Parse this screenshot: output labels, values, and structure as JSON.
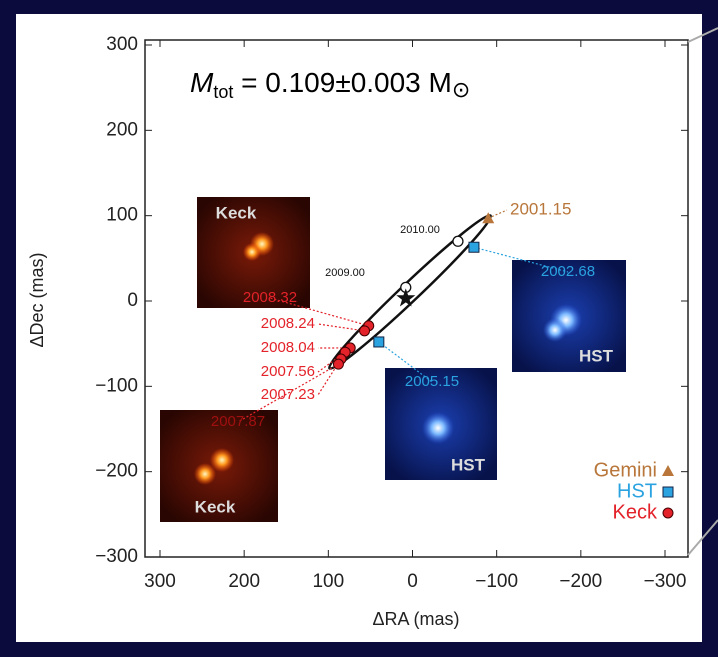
{
  "chart_data": {
    "type": "scatter",
    "annotation": {
      "symbol": "M",
      "subscript": "tot",
      "text": " = 0.109±0.003 M",
      "sun": "⊙"
    },
    "x_label": "ΔRA (mas)",
    "y_label": "ΔDec (mas)",
    "xlim": [
      300,
      -300
    ],
    "ylim": [
      -300,
      300
    ],
    "xticks": [
      300,
      200,
      100,
      0,
      {
        "value": -100,
        "label": "−100"
      },
      {
        "value": -200,
        "label": "−200"
      },
      {
        "value": -300,
        "label": "−300"
      }
    ],
    "yticks": [
      300,
      200,
      100,
      0,
      {
        "value": -100,
        "label": "−100"
      },
      {
        "value": -200,
        "label": "−200"
      },
      {
        "value": -300,
        "label": "−300"
      }
    ],
    "series": [
      {
        "name": "Gemini",
        "color": "#b8763a",
        "marker": "triangle",
        "x": [
          -90
        ],
        "y": [
          97
        ],
        "labels": [
          "2001.15"
        ]
      },
      {
        "name": "HST",
        "color": "#2aa3e0",
        "marker": "square",
        "x": [
          -73,
          40
        ],
        "y": [
          63,
          -48
        ],
        "labels": [
          "2002.68",
          "2005.15"
        ]
      },
      {
        "name": "Keck",
        "color": "#e3222a",
        "marker": "circle",
        "x": [
          52,
          57,
          74,
          80,
          85,
          88
        ],
        "y": [
          -29,
          -35,
          -55,
          -60,
          -68,
          -74
        ],
        "labels": [
          "2008.32",
          "2008.24",
          "2008.04",
          "2007.56",
          "2007.23",
          "2007.87"
        ]
      }
    ],
    "predictions": {
      "x": [
        -54,
        8
      ],
      "y": [
        70,
        16
      ],
      "labels": [
        "2010.00",
        "2009.00"
      ]
    },
    "center": {
      "x": 8,
      "y": 3
    },
    "insets": [
      "Keck",
      "Keck",
      "HST",
      "HST"
    ]
  }
}
